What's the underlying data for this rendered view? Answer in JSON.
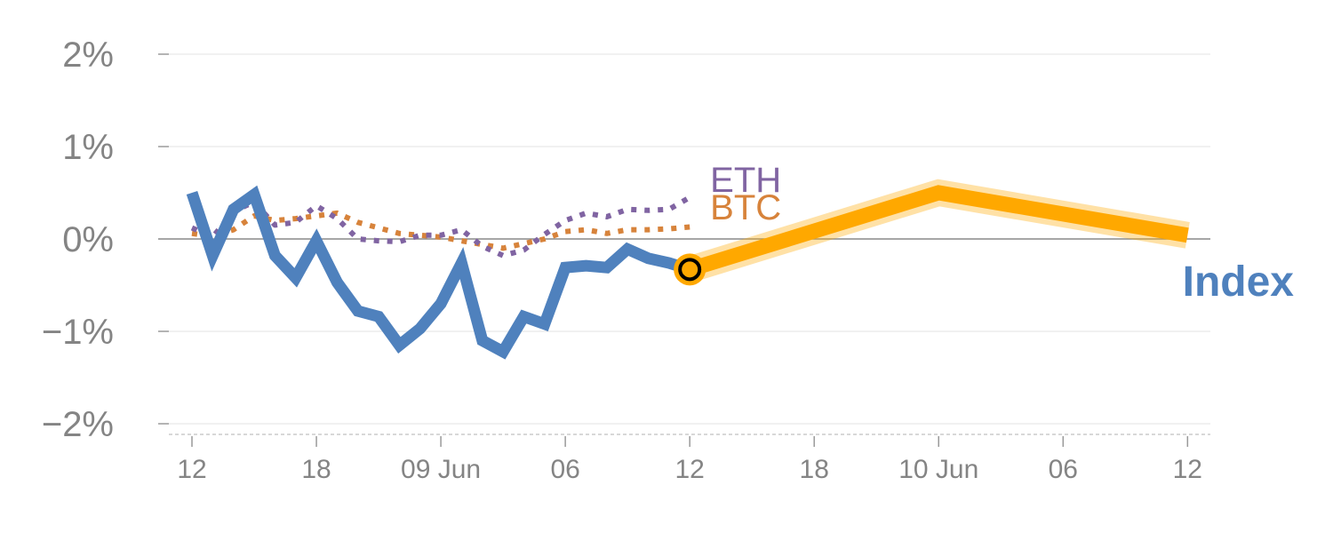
{
  "chart_data": {
    "type": "line",
    "title": "",
    "xlabel": "",
    "ylabel": "",
    "y_ticks": [
      "2%",
      "1%",
      "0%",
      "−1%",
      "−2%"
    ],
    "y_tick_values": [
      2,
      1,
      0,
      -1,
      -2
    ],
    "ylim": [
      -2.1,
      2.1
    ],
    "x_ticks": [
      "12",
      "18",
      "09 Jun",
      "06",
      "12",
      "18",
      "10 Jun",
      "06",
      "12"
    ],
    "x_tick_index": [
      0,
      6,
      12,
      18,
      24,
      30,
      36,
      42,
      48
    ],
    "xlim": [
      -1.2,
      49.1
    ],
    "grid": true,
    "zero_line": true,
    "series": [
      {
        "name": "Index",
        "style": "solid",
        "color": "#4f81bd",
        "x": [
          0,
          1,
          2,
          3,
          4,
          5,
          6,
          7,
          8,
          9,
          10,
          11,
          12,
          13,
          14,
          15,
          16,
          17,
          18,
          19,
          20,
          21,
          22,
          23,
          24
        ],
        "values": [
          0.5,
          -0.18,
          0.32,
          0.48,
          -0.18,
          -0.42,
          -0.02,
          -0.47,
          -0.78,
          -0.84,
          -1.15,
          -0.97,
          -0.7,
          -0.26,
          -1.1,
          -1.22,
          -0.84,
          -0.92,
          -0.31,
          -0.29,
          -0.31,
          -0.11,
          -0.21,
          -0.26,
          -0.33
        ]
      },
      {
        "name": "ETH",
        "style": "dotted",
        "color": "#8064a2",
        "x": [
          0,
          1,
          2,
          3,
          4,
          5,
          6,
          7,
          8,
          9,
          10,
          11,
          12,
          13,
          14,
          15,
          16,
          17,
          18,
          19,
          20,
          21,
          22,
          23,
          24
        ],
        "values": [
          0.12,
          0.02,
          0.3,
          0.4,
          0.15,
          0.18,
          0.36,
          0.22,
          0.0,
          -0.02,
          -0.03,
          0.04,
          0.04,
          0.1,
          -0.08,
          -0.18,
          -0.12,
          0.05,
          0.2,
          0.28,
          0.24,
          0.32,
          0.31,
          0.32,
          0.45
        ]
      },
      {
        "name": "BTC",
        "style": "dotted",
        "color": "#d7833b",
        "x": [
          0,
          1,
          2,
          3,
          4,
          5,
          6,
          7,
          8,
          9,
          10,
          11,
          12,
          13,
          14,
          15,
          16,
          17,
          18,
          19,
          20,
          21,
          22,
          23,
          24
        ],
        "values": [
          0.06,
          0.03,
          0.1,
          0.25,
          0.2,
          0.22,
          0.25,
          0.28,
          0.18,
          0.12,
          0.06,
          0.04,
          0.02,
          -0.02,
          -0.06,
          -0.1,
          -0.05,
          0.0,
          0.08,
          0.1,
          0.06,
          0.1,
          0.1,
          0.11,
          0.13
        ]
      },
      {
        "name": "Index forecast",
        "style": "band",
        "color": "#ffa800",
        "x": [
          24,
          36,
          48
        ],
        "values": [
          -0.33,
          0.5,
          0.04
        ]
      }
    ],
    "marker": {
      "x": 24,
      "y": -0.33,
      "fill": "#ffa800",
      "ring": "#000000"
    }
  }
}
